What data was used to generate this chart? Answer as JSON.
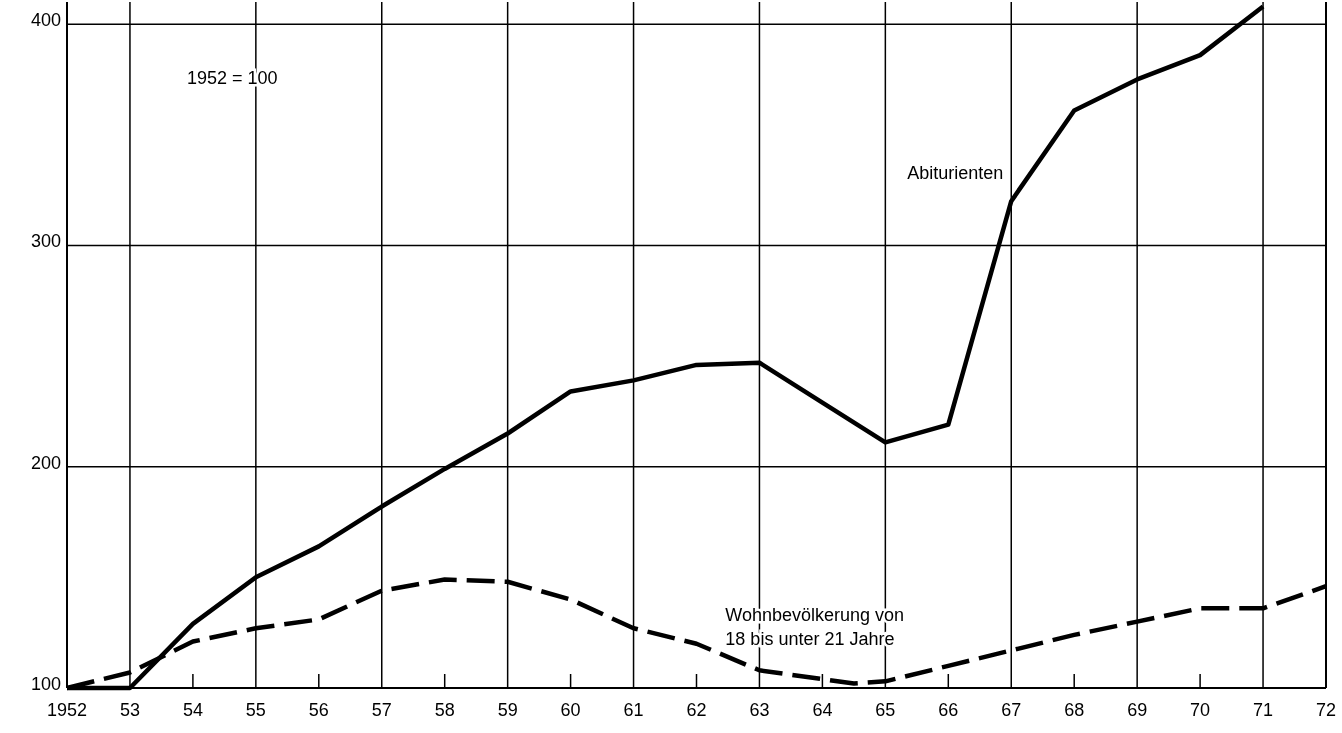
{
  "chart_data": {
    "type": "line",
    "x": [
      1952,
      1953,
      1954,
      1955,
      1956,
      1957,
      1958,
      1959,
      1960,
      1961,
      1962,
      1963,
      1964,
      1965,
      1966,
      1967,
      1968,
      1969,
      1970,
      1971
    ],
    "series": [
      {
        "name": "Abiturienten",
        "color": "#000000",
        "line_style": "solid",
        "values": [
          100,
          100,
          129,
          150,
          164,
          182,
          199,
          215,
          234,
          239,
          246,
          247,
          229,
          211,
          219,
          320,
          361,
          375,
          386,
          408
        ]
      },
      {
        "name": "Wohnbevölkerung von\n18 bis unter 21 Jahre",
        "color": "#000000",
        "line_style": "dashed",
        "x": [
          1952,
          1953,
          1954,
          1955,
          1956,
          1957,
          1958,
          1959,
          1960,
          1961,
          1962,
          1963,
          1964,
          1964.5,
          1965,
          1966,
          1967,
          1968,
          1969,
          1970,
          1971,
          1972
        ],
        "values": [
          100,
          107,
          121,
          127,
          131,
          144,
          149,
          148,
          140,
          127,
          120,
          108,
          104,
          102,
          103,
          110,
          117,
          124,
          130,
          136,
          136,
          146
        ]
      }
    ],
    "xlim": [
      1952,
      1972
    ],
    "xticks": [
      {
        "value": 1952,
        "label": "1952"
      },
      {
        "value": 1953,
        "label": "53"
      },
      {
        "value": 1954,
        "label": "54"
      },
      {
        "value": 1955,
        "label": "55"
      },
      {
        "value": 1956,
        "label": "56"
      },
      {
        "value": 1957,
        "label": "57"
      },
      {
        "value": 1958,
        "label": "58"
      },
      {
        "value": 1959,
        "label": "59"
      },
      {
        "value": 1960,
        "label": "60"
      },
      {
        "value": 1961,
        "label": "61"
      },
      {
        "value": 1962,
        "label": "62"
      },
      {
        "value": 1963,
        "label": "63"
      },
      {
        "value": 1964,
        "label": "64"
      },
      {
        "value": 1965,
        "label": "65"
      },
      {
        "value": 1966,
        "label": "66"
      },
      {
        "value": 1967,
        "label": "67"
      },
      {
        "value": 1968,
        "label": "68"
      },
      {
        "value": 1969,
        "label": "69"
      },
      {
        "value": 1970,
        "label": "70"
      },
      {
        "value": 1971,
        "label": "71"
      },
      {
        "value": 1972,
        "label": "72"
      }
    ],
    "ylim": [
      100,
      410
    ],
    "yticks": [
      100,
      200,
      300,
      400
    ],
    "grid": true,
    "marker": "none",
    "annotations": [
      "1952 = 100"
    ]
  }
}
